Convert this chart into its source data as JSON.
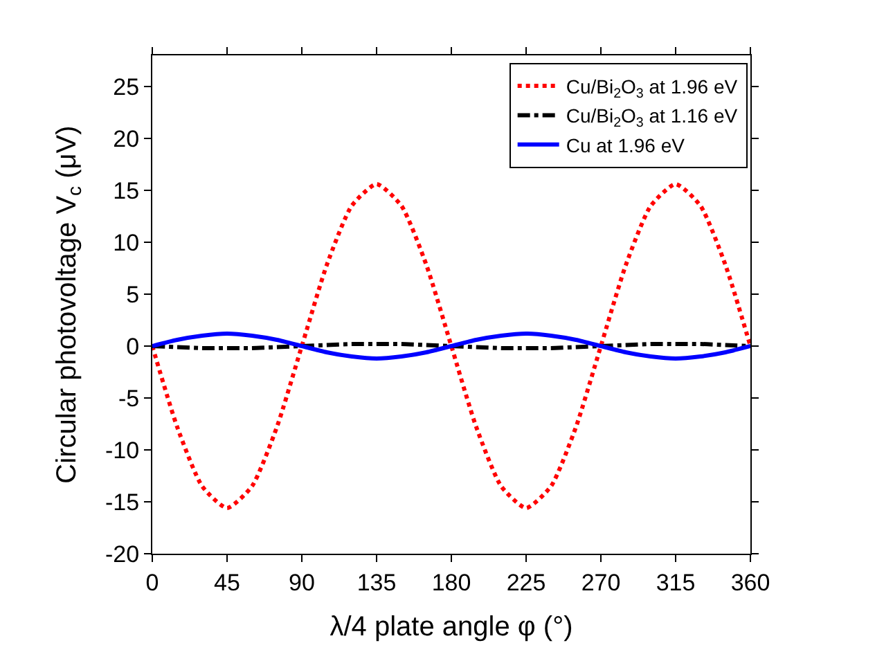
{
  "chart_data": {
    "type": "line",
    "xlabel": "λ/4 plate angle φ (°)",
    "ylabel": "Circular photovoltage V$_{c}$ (μV)",
    "x": [
      0,
      15,
      30,
      45,
      60,
      75,
      90,
      105,
      120,
      135,
      150,
      165,
      180,
      195,
      210,
      225,
      240,
      255,
      270,
      285,
      300,
      315,
      330,
      345,
      360
    ],
    "series": [
      {
        "name": "Cu/Bi$_{2}$O$_{3}$ at 1.96 eV",
        "color": "#ff0000",
        "line_style": "dotted",
        "values": [
          0,
          -7.8,
          -13.5,
          -15.6,
          -13.5,
          -7.8,
          0,
          7.8,
          13.5,
          15.6,
          13.5,
          7.8,
          0,
          -7.8,
          -13.5,
          -15.6,
          -13.5,
          -7.8,
          0,
          7.8,
          13.5,
          15.6,
          13.5,
          7.8,
          0
        ]
      },
      {
        "name": "Cu/Bi$_{2}$O$_{3}$ at 1.16 eV",
        "color": "#000000",
        "line_style": "dashdot",
        "values": [
          0,
          -0.1,
          -0.2,
          -0.2,
          -0.2,
          -0.1,
          0,
          0.1,
          0.2,
          0.2,
          0.2,
          0.1,
          0,
          -0.1,
          -0.2,
          -0.2,
          -0.2,
          -0.1,
          0,
          0.1,
          0.2,
          0.2,
          0.2,
          0.1,
          0
        ]
      },
      {
        "name": "Cu at 1.96 eV",
        "color": "#0000ff",
        "line_style": "solid",
        "values": [
          0,
          0.6,
          1.0,
          1.2,
          1.0,
          0.6,
          0,
          -0.6,
          -1.0,
          -1.2,
          -1.0,
          -0.6,
          0,
          0.6,
          1.0,
          1.2,
          1.0,
          0.6,
          0,
          -0.6,
          -1.0,
          -1.2,
          -1.0,
          -0.6,
          0
        ]
      }
    ],
    "xlim": [
      0,
      360
    ],
    "xticks": [
      0,
      45,
      90,
      135,
      180,
      225,
      270,
      315,
      360
    ],
    "ylim": [
      -20,
      28
    ],
    "yticks": [
      -20,
      -15,
      -10,
      -5,
      0,
      5,
      10,
      15,
      20,
      25
    ],
    "legend": "top right",
    "marker": "none"
  }
}
